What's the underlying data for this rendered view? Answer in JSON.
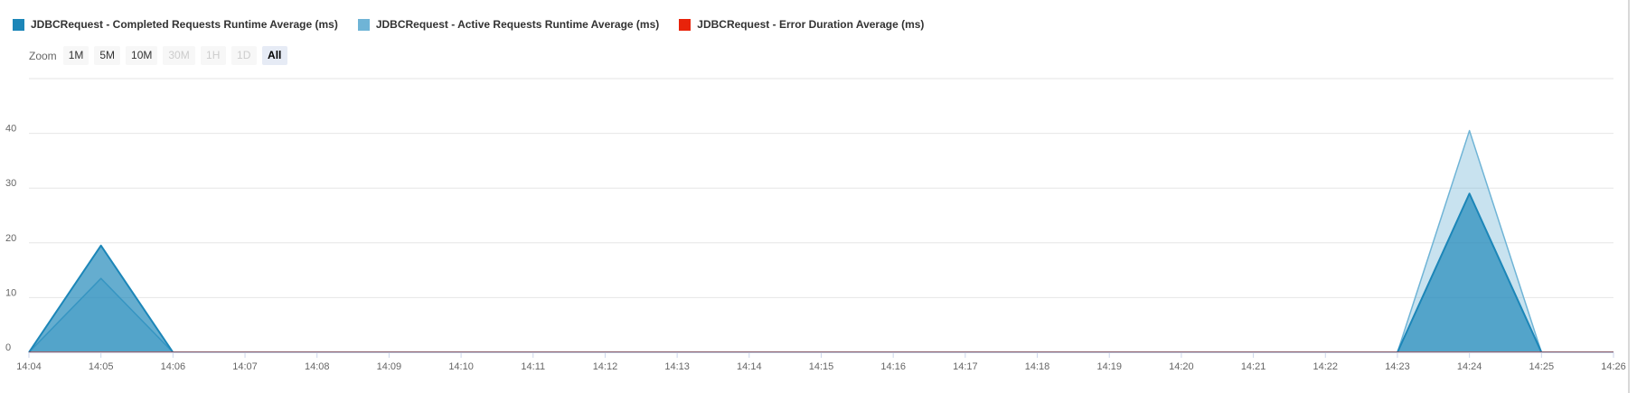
{
  "legend": {
    "items": [
      {
        "label": "JDBCRequest - Completed Requests Runtime Average (ms)",
        "color": "#1c86b8"
      },
      {
        "label": "JDBCRequest - Active Requests Runtime Average (ms)",
        "color": "#6fb4d6"
      },
      {
        "label": "JDBCRequest - Error Duration Average (ms)",
        "color": "#e8230a"
      }
    ]
  },
  "zoom": {
    "label": "Zoom",
    "buttons": [
      {
        "label": "1M",
        "state": "normal"
      },
      {
        "label": "5M",
        "state": "normal"
      },
      {
        "label": "10M",
        "state": "normal"
      },
      {
        "label": "30M",
        "state": "disabled"
      },
      {
        "label": "1H",
        "state": "disabled"
      },
      {
        "label": "1D",
        "state": "disabled"
      },
      {
        "label": "All",
        "state": "active"
      }
    ]
  },
  "chart_data": {
    "type": "area",
    "categories": [
      "14:04",
      "14:05",
      "14:06",
      "14:07",
      "14:08",
      "14:09",
      "14:10",
      "14:11",
      "14:12",
      "14:13",
      "14:14",
      "14:15",
      "14:16",
      "14:17",
      "14:18",
      "14:19",
      "14:20",
      "14:21",
      "14:22",
      "14:23",
      "14:24",
      "14:25",
      "14:26"
    ],
    "yticks": [
      0,
      10,
      20,
      30,
      40
    ],
    "ylim": [
      0,
      50
    ],
    "grid": true,
    "legend_position": "top-left",
    "series": [
      {
        "name": "JDBCRequest - Active Requests Runtime Average (ms)",
        "color": "#6fb4d6",
        "values": [
          0,
          13.5,
          0,
          0,
          0,
          0,
          0,
          0,
          0,
          0,
          0,
          0,
          0,
          0,
          0,
          0,
          0,
          0,
          0,
          0,
          40.5,
          0,
          0
        ]
      },
      {
        "name": "JDBCRequest - Completed Requests Runtime Average (ms)",
        "color": "#1c86b8",
        "values": [
          0,
          19.5,
          0,
          0,
          0,
          0,
          0,
          0,
          0,
          0,
          0,
          0,
          0,
          0,
          0,
          0,
          0,
          0,
          0,
          0,
          29,
          0,
          0
        ]
      },
      {
        "name": "JDBCRequest - Error Duration Average (ms)",
        "color": "#e8230a",
        "values": [
          0,
          0,
          0,
          0,
          0,
          0,
          0,
          0,
          0,
          0,
          0,
          0,
          0,
          0,
          0,
          0,
          0,
          0,
          0,
          0,
          0,
          0,
          0
        ]
      }
    ]
  }
}
